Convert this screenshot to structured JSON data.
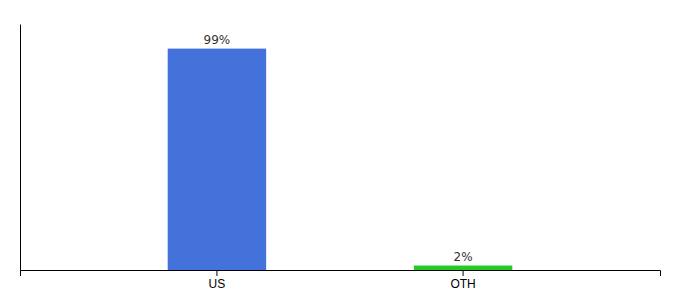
{
  "chart_data": {
    "type": "bar",
    "categories": [
      "US",
      "OTH"
    ],
    "values": [
      99,
      2
    ],
    "colors": [
      "#4472db",
      "#22cc22"
    ],
    "data_labels": true,
    "value_labels": [
      "99%",
      "2%"
    ],
    "ylim": [
      0,
      110
    ],
    "tick_labels": "x",
    "grid": false
  }
}
